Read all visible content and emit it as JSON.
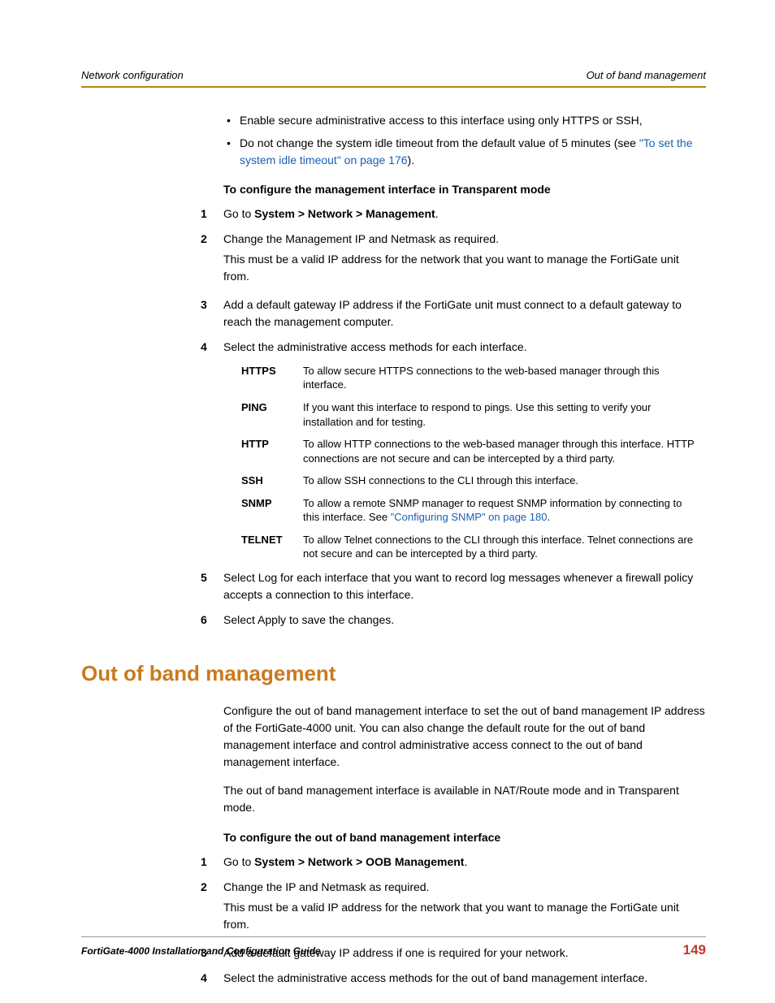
{
  "header": {
    "left": "Network configuration",
    "right": "Out of band management"
  },
  "bullets": [
    {
      "text": "Enable secure administrative access to this interface using only HTTPS or SSH,"
    },
    {
      "prefix": "Do not change the system idle timeout from the default value of 5 minutes (see ",
      "link": "\"To set the system idle timeout\" on page 176",
      "suffix": ")."
    }
  ],
  "sub1": "To configure the management interface in Transparent mode",
  "steps1": {
    "s1_prefix": "Go to ",
    "s1_bold": "System > Network > Management",
    "s1_suffix": ".",
    "s2a": "Change the Management IP and Netmask as required.",
    "s2b": "This must be a valid IP address for the network that you want to manage the FortiGate unit from.",
    "s3": "Add a default gateway IP address if the FortiGate unit must connect to a default gateway to reach the management computer.",
    "s4": "Select the administrative access methods for each interface.",
    "s5": "Select Log for each interface that you want to record log messages whenever a firewall policy accepts a connection to this interface.",
    "s6": "Select Apply to save the changes."
  },
  "access": [
    {
      "label": "HTTPS",
      "desc": "To allow secure HTTPS connections to the web-based manager through this interface."
    },
    {
      "label": "PING",
      "desc": "If you want this interface to respond to pings. Use this setting to verify your installation and for testing."
    },
    {
      "label": "HTTP",
      "desc": "To allow HTTP connections to the web-based manager through this interface. HTTP connections are not secure and can be intercepted by a third party."
    },
    {
      "label": "SSH",
      "desc": "To allow SSH connections to the CLI through this interface."
    },
    {
      "label": "SNMP",
      "desc_prefix": "To allow a remote SNMP manager to request SNMP information by connecting to this interface. See ",
      "link": "\"Configuring SNMP\" on page 180",
      "desc_suffix": "."
    },
    {
      "label": "TELNET",
      "desc": "To allow Telnet connections to the CLI through this interface. Telnet connections are not secure and can be intercepted by a third party."
    }
  ],
  "h1": "Out of band management",
  "oob_p1": "Configure the out of band management interface to set the out of band management IP address of the FortiGate-4000 unit. You can also change the default route for the out of band management interface and control administrative access connect to the out of band management interface.",
  "oob_p2": "The out of band management interface is available in NAT/Route mode and in Transparent mode.",
  "sub2": "To configure the out of band management interface",
  "steps2": {
    "s1_prefix": "Go to ",
    "s1_bold": "System > Network > OOB Management",
    "s1_suffix": ".",
    "s2a": "Change the IP and Netmask as required.",
    "s2b": "This must be a valid IP address for the network that you want to manage the FortiGate unit from.",
    "s3": "Add a default gateway IP address if one is required for your network.",
    "s4": "Select the administrative access methods for the out of band management interface."
  },
  "footer": {
    "left": "FortiGate-4000 Installation and Configuration Guide",
    "page": "149"
  },
  "nums": {
    "n1": "1",
    "n2": "2",
    "n3": "3",
    "n4": "4",
    "n5": "5",
    "n6": "6"
  },
  "bullet_char": "•"
}
